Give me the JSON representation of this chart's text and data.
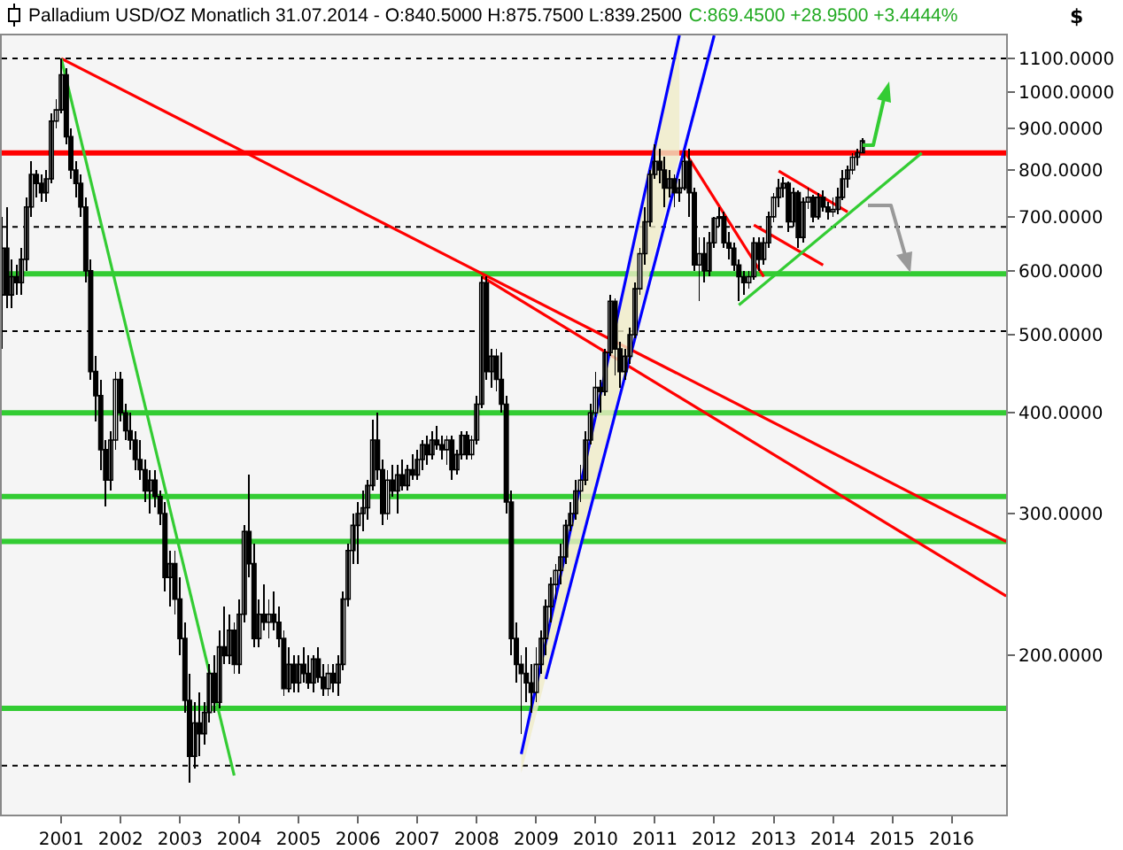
{
  "chart_data": {
    "type": "candlestick",
    "title": "Palladium USD/OZ Monatlich  31.07.2014 - O:840.5000 H:875.7500 L:839.2500",
    "subtitle": "C:869.4500 +28.9500 +3.4444%",
    "ylabel": "$",
    "log": true,
    "grid": false,
    "xlim": [
      "2000-01",
      "2016-12"
    ],
    "ylim": [
      127,
      1175
    ],
    "xticks": [
      {
        "value": "2001-01",
        "label": "2001"
      },
      {
        "value": "2002-01",
        "label": "2002"
      },
      {
        "value": "2003-01",
        "label": "2003"
      },
      {
        "value": "2004-01",
        "label": "2004"
      },
      {
        "value": "2005-01",
        "label": "2005"
      },
      {
        "value": "2006-01",
        "label": "2006"
      },
      {
        "value": "2007-01",
        "label": "2007"
      },
      {
        "value": "2008-01",
        "label": "2008"
      },
      {
        "value": "2009-01",
        "label": "2009"
      },
      {
        "value": "2010-01",
        "label": "2010"
      },
      {
        "value": "2011-01",
        "label": "2011"
      },
      {
        "value": "2012-01",
        "label": "2012"
      },
      {
        "value": "2013-01",
        "label": "2013"
      },
      {
        "value": "2014-01",
        "label": "2014"
      },
      {
        "value": "2015-01",
        "label": "2015"
      },
      {
        "value": "2016-01",
        "label": "2016"
      }
    ],
    "yticks": [
      {
        "value": 200,
        "label": "200.0000"
      },
      {
        "value": 300,
        "label": "300.0000"
      },
      {
        "value": 400,
        "label": "400.0000"
      },
      {
        "value": 500,
        "label": "500.0000"
      },
      {
        "value": 600,
        "label": "600.0000"
      },
      {
        "value": 700,
        "label": "700.0000"
      },
      {
        "value": 800,
        "label": "800.0000"
      },
      {
        "value": 900,
        "label": "900.0000"
      },
      {
        "value": 1000,
        "label": "1000.0000"
      },
      {
        "value": 1100,
        "label": "1100.0000"
      }
    ],
    "x": [
      "2000-01",
      "2000-02",
      "2000-03",
      "2000-04",
      "2000-05",
      "2000-06",
      "2000-07",
      "2000-08",
      "2000-09",
      "2000-10",
      "2000-11",
      "2000-12",
      "2001-01",
      "2001-02",
      "2001-03",
      "2001-04",
      "2001-05",
      "2001-06",
      "2001-07",
      "2001-08",
      "2001-09",
      "2001-10",
      "2001-11",
      "2001-12",
      "2002-01",
      "2002-02",
      "2002-03",
      "2002-04",
      "2002-05",
      "2002-06",
      "2002-07",
      "2002-08",
      "2002-09",
      "2002-10",
      "2002-11",
      "2002-12",
      "2003-01",
      "2003-02",
      "2003-03",
      "2003-04",
      "2003-05",
      "2003-06",
      "2003-07",
      "2003-08",
      "2003-09",
      "2003-10",
      "2003-11",
      "2003-12",
      "2004-01",
      "2004-02",
      "2004-03",
      "2004-04",
      "2004-05",
      "2004-06",
      "2004-07",
      "2004-08",
      "2004-09",
      "2004-10",
      "2004-11",
      "2004-12",
      "2005-01",
      "2005-02",
      "2005-03",
      "2005-04",
      "2005-05",
      "2005-06",
      "2005-07",
      "2005-08",
      "2005-09",
      "2005-10",
      "2005-11",
      "2005-12",
      "2006-01",
      "2006-02",
      "2006-03",
      "2006-04",
      "2006-05",
      "2006-06",
      "2006-07",
      "2006-08",
      "2006-09",
      "2006-10",
      "2006-11",
      "2006-12",
      "2007-01",
      "2007-02",
      "2007-03",
      "2007-04",
      "2007-05",
      "2007-06",
      "2007-07",
      "2007-08",
      "2007-09",
      "2007-10",
      "2007-11",
      "2007-12",
      "2008-01",
      "2008-02",
      "2008-03",
      "2008-04",
      "2008-05",
      "2008-06",
      "2008-07",
      "2008-08",
      "2008-09",
      "2008-10",
      "2008-11",
      "2008-12",
      "2009-01",
      "2009-02",
      "2009-03",
      "2009-04",
      "2009-05",
      "2009-06",
      "2009-07",
      "2009-08",
      "2009-09",
      "2009-10",
      "2009-11",
      "2009-12",
      "2010-01",
      "2010-02",
      "2010-03",
      "2010-04",
      "2010-05",
      "2010-06",
      "2010-07",
      "2010-08",
      "2010-09",
      "2010-10",
      "2010-11",
      "2010-12",
      "2011-01",
      "2011-02",
      "2011-03",
      "2011-04",
      "2011-05",
      "2011-06",
      "2011-07",
      "2011-08",
      "2011-09",
      "2011-10",
      "2011-11",
      "2011-12",
      "2012-01",
      "2012-02",
      "2012-03",
      "2012-04",
      "2012-05",
      "2012-06",
      "2012-07",
      "2012-08",
      "2012-09",
      "2012-10",
      "2012-11",
      "2012-12",
      "2013-01",
      "2013-02",
      "2013-03",
      "2013-04",
      "2013-05",
      "2013-06",
      "2013-07",
      "2013-08",
      "2013-09",
      "2013-10",
      "2013-11",
      "2013-12",
      "2014-01",
      "2014-02",
      "2014-03",
      "2014-04",
      "2014-05",
      "2014-06",
      "2014-07"
    ],
    "ohlc": [
      [
        560,
        700,
        480,
        640
      ],
      [
        640,
        720,
        540,
        560
      ],
      [
        560,
        620,
        540,
        590
      ],
      [
        590,
        610,
        560,
        580
      ],
      [
        580,
        640,
        560,
        620
      ],
      [
        620,
        740,
        600,
        720
      ],
      [
        720,
        820,
        700,
        790
      ],
      [
        790,
        800,
        740,
        770
      ],
      [
        770,
        790,
        730,
        750
      ],
      [
        750,
        800,
        730,
        780
      ],
      [
        780,
        940,
        770,
        920
      ],
      [
        920,
        980,
        900,
        950
      ],
      [
        950,
        1100,
        940,
        1050
      ],
      [
        1050,
        1070,
        860,
        880
      ],
      [
        880,
        900,
        780,
        800
      ],
      [
        800,
        820,
        740,
        770
      ],
      [
        770,
        790,
        700,
        720
      ],
      [
        720,
        740,
        580,
        600
      ],
      [
        600,
        620,
        440,
        450
      ],
      [
        450,
        470,
        390,
        420
      ],
      [
        420,
        440,
        340,
        360
      ],
      [
        360,
        370,
        306,
        330
      ],
      [
        330,
        380,
        320,
        370
      ],
      [
        370,
        450,
        360,
        440
      ],
      [
        440,
        450,
        390,
        400
      ],
      [
        400,
        410,
        370,
        380
      ],
      [
        380,
        400,
        360,
        370
      ],
      [
        370,
        380,
        340,
        350
      ],
      [
        350,
        370,
        330,
        340
      ],
      [
        340,
        350,
        310,
        320
      ],
      [
        320,
        340,
        300,
        330
      ],
      [
        330,
        340,
        305,
        315
      ],
      [
        315,
        320,
        290,
        300
      ],
      [
        300,
        310,
        240,
        250
      ],
      [
        250,
        270,
        230,
        260
      ],
      [
        260,
        270,
        225,
        235
      ],
      [
        235,
        250,
        200,
        210
      ],
      [
        210,
        220,
        170,
        176
      ],
      [
        176,
        190,
        139,
        150
      ],
      [
        150,
        175,
        145,
        165
      ],
      [
        165,
        180,
        150,
        160
      ],
      [
        160,
        175,
        155,
        170
      ],
      [
        170,
        195,
        165,
        190
      ],
      [
        190,
        200,
        170,
        175
      ],
      [
        175,
        215,
        172,
        205
      ],
      [
        205,
        230,
        195,
        200
      ],
      [
        200,
        225,
        195,
        215
      ],
      [
        215,
        220,
        190,
        195
      ],
      [
        195,
        235,
        190,
        225
      ],
      [
        225,
        290,
        220,
        285
      ],
      [
        285,
        335,
        250,
        260
      ],
      [
        260,
        275,
        205,
        210
      ],
      [
        210,
        235,
        205,
        225
      ],
      [
        225,
        245,
        215,
        220
      ],
      [
        220,
        235,
        210,
        225
      ],
      [
        225,
        240,
        215,
        220
      ],
      [
        220,
        230,
        205,
        210
      ],
      [
        210,
        215,
        178,
        182
      ],
      [
        182,
        205,
        180,
        195
      ],
      [
        195,
        200,
        180,
        185
      ],
      [
        185,
        200,
        180,
        195
      ],
      [
        195,
        205,
        185,
        190
      ],
      [
        190,
        200,
        182,
        185
      ],
      [
        185,
        200,
        180,
        198
      ],
      [
        198,
        205,
        185,
        188
      ],
      [
        188,
        195,
        178,
        182
      ],
      [
        182,
        195,
        178,
        190
      ],
      [
        190,
        195,
        180,
        185
      ],
      [
        185,
        200,
        178,
        195
      ],
      [
        195,
        240,
        192,
        235
      ],
      [
        235,
        275,
        230,
        270
      ],
      [
        270,
        300,
        260,
        290
      ],
      [
        290,
        310,
        260,
        300
      ],
      [
        300,
        320,
        285,
        305
      ],
      [
        305,
        330,
        295,
        325
      ],
      [
        325,
        392,
        320,
        370
      ],
      [
        370,
        400,
        330,
        340
      ],
      [
        340,
        350,
        290,
        300
      ],
      [
        300,
        340,
        295,
        330
      ],
      [
        330,
        345,
        315,
        320
      ],
      [
        320,
        345,
        300,
        335
      ],
      [
        335,
        350,
        320,
        325
      ],
      [
        325,
        345,
        320,
        340
      ],
      [
        340,
        355,
        330,
        335
      ],
      [
        335,
        360,
        330,
        350
      ],
      [
        350,
        370,
        340,
        365
      ],
      [
        365,
        375,
        345,
        355
      ],
      [
        355,
        380,
        350,
        370
      ],
      [
        370,
        385,
        360,
        365
      ],
      [
        365,
        375,
        350,
        360
      ],
      [
        360,
        375,
        345,
        370
      ],
      [
        370,
        375,
        330,
        340
      ],
      [
        340,
        360,
        335,
        355
      ],
      [
        355,
        380,
        350,
        375
      ],
      [
        375,
        380,
        350,
        355
      ],
      [
        355,
        375,
        350,
        370
      ],
      [
        370,
        420,
        365,
        410
      ],
      [
        410,
        590,
        405,
        580
      ],
      [
        580,
        590,
        440,
        450
      ],
      [
        450,
        480,
        430,
        470
      ],
      [
        470,
        480,
        425,
        440
      ],
      [
        440,
        475,
        400,
        410
      ],
      [
        410,
        420,
        300,
        310
      ],
      [
        310,
        320,
        200,
        210
      ],
      [
        210,
        220,
        185,
        195
      ],
      [
        195,
        200,
        160,
        190
      ],
      [
        190,
        205,
        175,
        185
      ],
      [
        185,
        195,
        170,
        180
      ],
      [
        180,
        205,
        175,
        195
      ],
      [
        195,
        215,
        190,
        210
      ],
      [
        210,
        235,
        200,
        230
      ],
      [
        230,
        250,
        220,
        245
      ],
      [
        245,
        260,
        235,
        255
      ],
      [
        255,
        275,
        245,
        265
      ],
      [
        265,
        295,
        260,
        290
      ],
      [
        290,
        310,
        285,
        300
      ],
      [
        300,
        330,
        295,
        320
      ],
      [
        320,
        345,
        310,
        330
      ],
      [
        330,
        380,
        325,
        370
      ],
      [
        370,
        410,
        365,
        400
      ],
      [
        400,
        450,
        395,
        430
      ],
      [
        430,
        440,
        400,
        425
      ],
      [
        425,
        480,
        420,
        475
      ],
      [
        475,
        560,
        470,
        550
      ],
      [
        550,
        555,
        445,
        480
      ],
      [
        480,
        490,
        430,
        450
      ],
      [
        450,
        480,
        440,
        470
      ],
      [
        470,
        510,
        460,
        500
      ],
      [
        500,
        580,
        495,
        570
      ],
      [
        570,
        640,
        560,
        630
      ],
      [
        630,
        720,
        610,
        690
      ],
      [
        690,
        800,
        680,
        790
      ],
      [
        790,
        860,
        780,
        820
      ],
      [
        820,
        850,
        770,
        800
      ],
      [
        800,
        830,
        720,
        760
      ],
      [
        760,
        800,
        740,
        780
      ],
      [
        780,
        790,
        720,
        750
      ],
      [
        750,
        780,
        730,
        760
      ],
      [
        760,
        845,
        755,
        820
      ],
      [
        820,
        850,
        700,
        750
      ],
      [
        750,
        760,
        600,
        610
      ],
      [
        610,
        660,
        550,
        630
      ],
      [
        630,
        660,
        580,
        600
      ],
      [
        600,
        670,
        590,
        650
      ],
      [
        650,
        700,
        640,
        697
      ],
      [
        697,
        720,
        680,
        700
      ],
      [
        700,
        710,
        640,
        650
      ],
      [
        650,
        670,
        620,
        640
      ],
      [
        640,
        650,
        600,
        610
      ],
      [
        610,
        620,
        550,
        590
      ],
      [
        590,
        600,
        560,
        580
      ],
      [
        580,
        600,
        570,
        590
      ],
      [
        590,
        660,
        585,
        650
      ],
      [
        650,
        660,
        600,
        620
      ],
      [
        620,
        660,
        610,
        650
      ],
      [
        650,
        710,
        640,
        700
      ],
      [
        700,
        750,
        690,
        740
      ],
      [
        740,
        780,
        720,
        760
      ],
      [
        760,
        785,
        740,
        770
      ],
      [
        770,
        775,
        670,
        690
      ],
      [
        690,
        760,
        680,
        750
      ],
      [
        750,
        755,
        640,
        660
      ],
      [
        660,
        740,
        650,
        730
      ],
      [
        730,
        760,
        715,
        740
      ],
      [
        740,
        745,
        690,
        700
      ],
      [
        700,
        750,
        695,
        740
      ],
      [
        740,
        755,
        710,
        720
      ],
      [
        720,
        730,
        695,
        710
      ],
      [
        710,
        740,
        700,
        715
      ],
      [
        715,
        760,
        705,
        740
      ],
      [
        740,
        800,
        735,
        780
      ],
      [
        780,
        810,
        760,
        800
      ],
      [
        800,
        840,
        790,
        830
      ],
      [
        830,
        850,
        810,
        840.5
      ],
      [
        840.5,
        875.75,
        839.25,
        869.45
      ]
    ],
    "series": [
      {
        "type": "line",
        "color": "#ff0000",
        "x": [
          "2001-01",
          "2016-12"
        ],
        "values": [
          1100,
          277
        ]
      },
      {
        "type": "line",
        "color": "#ff0000",
        "x": [
          "2008-02",
          "2016-12"
        ],
        "values": [
          590,
          237
        ]
      },
      {
        "type": "line",
        "color": "#33cc33",
        "x": [
          "2001-01",
          "2003-12"
        ],
        "values": [
          1100,
          142
        ]
      },
      {
        "type": "line",
        "color": "#0000ff",
        "x": [
          "2008-10",
          "2011-06"
        ],
        "values": [
          151,
          1175
        ],
        "lower": [
          143,
          831
        ],
        "upper": [
          151,
          1175
        ]
      },
      {
        "type": "line",
        "color": "#0000ff",
        "x": [
          "2009-03",
          "2012-01"
        ],
        "values": [
          187,
          1175
        ]
      },
      {
        "type": "line",
        "color": "#ff0000",
        "x": [
          "2011-07",
          "2012-11"
        ],
        "values": [
          845,
          590
        ]
      },
      {
        "type": "line",
        "color": "#ff0000",
        "x": [
          "2013-02",
          "2014-04"
        ],
        "values": [
          798,
          710
        ]
      },
      {
        "type": "line",
        "color": "#ff0000",
        "x": [
          "2012-09",
          "2013-11"
        ],
        "values": [
          684,
          610
        ]
      },
      {
        "type": "line",
        "color": "#33cc33",
        "x": [
          "2012-06",
          "2015-07"
        ],
        "values": [
          544,
          840
        ]
      }
    ],
    "ref_lines": [
      {
        "axis": "y",
        "value": 1100,
        "color": "#000000",
        "line_style": "dotted"
      },
      {
        "axis": "y",
        "value": 680,
        "color": "#000000",
        "line_style": "dotted"
      },
      {
        "axis": "y",
        "value": 505,
        "color": "#000000",
        "line_style": "dotted"
      },
      {
        "axis": "y",
        "value": 146,
        "color": "#000000",
        "line_style": "dotted"
      },
      {
        "axis": "y",
        "value": 840,
        "color": "#ff0000",
        "line_style": "solid"
      },
      {
        "axis": "y",
        "value": 595,
        "color": "#33cc33",
        "line_style": "solid"
      },
      {
        "axis": "y",
        "value": 400,
        "color": "#33cc33",
        "line_style": "solid"
      },
      {
        "axis": "y",
        "value": 315,
        "color": "#33cc33",
        "line_style": "solid"
      },
      {
        "axis": "y",
        "value": 277,
        "color": "#33cc33",
        "line_style": "solid"
      },
      {
        "axis": "y",
        "value": 172,
        "color": "#33cc33",
        "line_style": "solid"
      }
    ]
  }
}
